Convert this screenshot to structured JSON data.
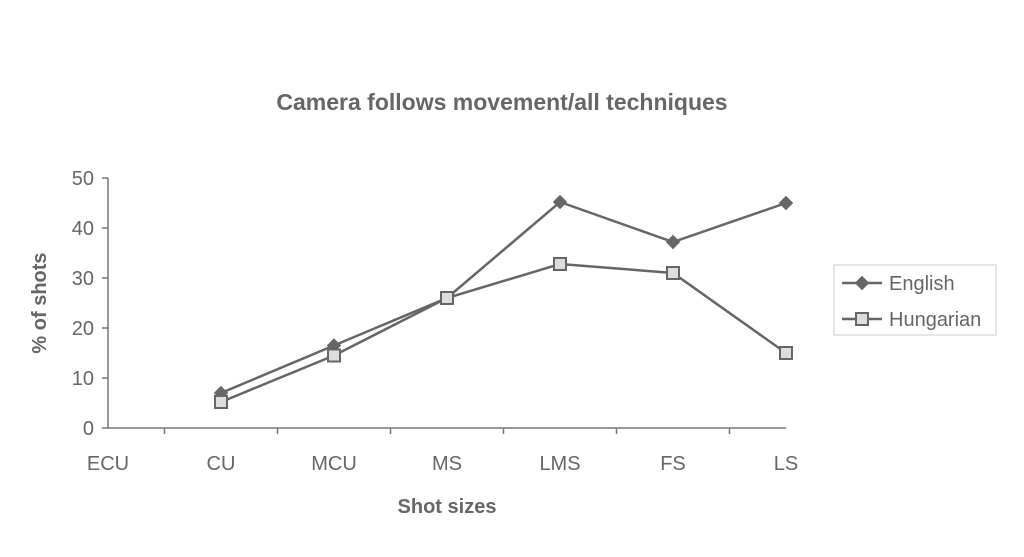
{
  "chart_data": {
    "type": "line",
    "title": "Camera follows movement/all techniques",
    "xlabel": "Shot sizes",
    "ylabel": "% of shots",
    "categories": [
      "ECU",
      "CU",
      "MCU",
      "MS",
      "LMS",
      "FS",
      "LS"
    ],
    "ylim": [
      0,
      50
    ],
    "yticks": [
      0,
      10,
      20,
      30,
      40,
      50
    ],
    "grid": false,
    "legend_position": "right",
    "series": [
      {
        "name": "English",
        "marker": "diamond",
        "color": "#666666",
        "values": [
          null,
          7,
          16.5,
          26,
          45.2,
          37.2,
          45
        ]
      },
      {
        "name": "Hungarian",
        "marker": "square",
        "color": "#666666",
        "values": [
          null,
          5.2,
          14.5,
          26,
          32.8,
          31,
          15
        ]
      }
    ]
  }
}
